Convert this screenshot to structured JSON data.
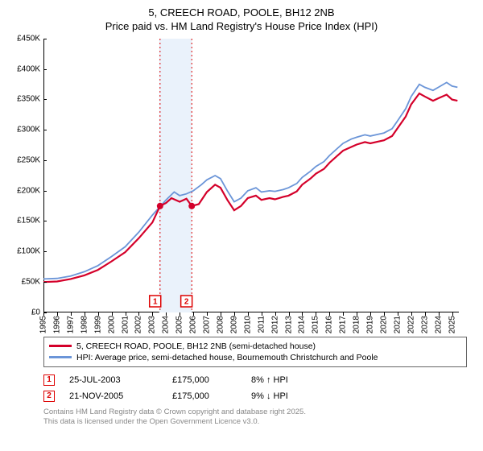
{
  "title_line1": "5, CREECH ROAD, POOLE, BH12 2NB",
  "title_line2": "Price paid vs. HM Land Registry's House Price Index (HPI)",
  "chart": {
    "type": "line",
    "background_color": "#ffffff",
    "x_year_min": 1995,
    "x_year_max": 2025.5,
    "ylim": [
      0,
      450000
    ],
    "ytick_step": 50000,
    "ytick_labels": [
      "£0",
      "£50K",
      "£100K",
      "£150K",
      "£200K",
      "£250K",
      "£300K",
      "£350K",
      "£400K",
      "£450K"
    ],
    "xtick_years": [
      1995,
      1996,
      1997,
      1998,
      1999,
      2000,
      2001,
      2002,
      2003,
      2004,
      2005,
      2006,
      2007,
      2008,
      2009,
      2010,
      2011,
      2012,
      2013,
      2014,
      2015,
      2016,
      2017,
      2018,
      2019,
      2020,
      2021,
      2022,
      2023,
      2024,
      2025
    ],
    "band": {
      "x0_year": 2003.5,
      "x1_year": 2005.9,
      "color": "#eaf2fb"
    },
    "series": {
      "hpi": {
        "label": "HPI: Average price, semi-detached house, Bournemouth Christchurch and Poole",
        "color": "#6b95d8",
        "points": [
          [
            1995.0,
            55000
          ],
          [
            1996.0,
            56000
          ],
          [
            1997.0,
            60000
          ],
          [
            1998.0,
            67000
          ],
          [
            1999.0,
            77000
          ],
          [
            2000.0,
            92000
          ],
          [
            2001.0,
            108000
          ],
          [
            2002.0,
            132000
          ],
          [
            2003.0,
            160000
          ],
          [
            2004.0,
            185000
          ],
          [
            2004.6,
            198000
          ],
          [
            2005.0,
            192000
          ],
          [
            2005.5,
            195000
          ],
          [
            2006.0,
            200000
          ],
          [
            2006.6,
            210000
          ],
          [
            2007.0,
            218000
          ],
          [
            2007.6,
            225000
          ],
          [
            2008.0,
            220000
          ],
          [
            2008.5,
            200000
          ],
          [
            2009.0,
            182000
          ],
          [
            2009.5,
            188000
          ],
          [
            2010.0,
            200000
          ],
          [
            2010.6,
            205000
          ],
          [
            2011.0,
            198000
          ],
          [
            2011.6,
            200000
          ],
          [
            2012.0,
            199000
          ],
          [
            2012.6,
            202000
          ],
          [
            2013.0,
            205000
          ],
          [
            2013.6,
            212000
          ],
          [
            2014.0,
            222000
          ],
          [
            2014.6,
            232000
          ],
          [
            2015.0,
            240000
          ],
          [
            2015.6,
            248000
          ],
          [
            2016.0,
            258000
          ],
          [
            2016.6,
            270000
          ],
          [
            2017.0,
            278000
          ],
          [
            2017.6,
            285000
          ],
          [
            2018.0,
            288000
          ],
          [
            2018.6,
            292000
          ],
          [
            2019.0,
            290000
          ],
          [
            2019.6,
            293000
          ],
          [
            2020.0,
            295000
          ],
          [
            2020.6,
            302000
          ],
          [
            2021.0,
            315000
          ],
          [
            2021.6,
            335000
          ],
          [
            2022.0,
            355000
          ],
          [
            2022.6,
            375000
          ],
          [
            2023.0,
            370000
          ],
          [
            2023.6,
            365000
          ],
          [
            2024.0,
            370000
          ],
          [
            2024.6,
            378000
          ],
          [
            2025.0,
            372000
          ],
          [
            2025.4,
            370000
          ]
        ]
      },
      "price": {
        "label": "5, CREECH ROAD, POOLE, BH12 2NB (semi-detached house)",
        "color": "#d4002a",
        "points": [
          [
            1995.0,
            50000
          ],
          [
            1996.0,
            51000
          ],
          [
            1997.0,
            55000
          ],
          [
            1998.0,
            61000
          ],
          [
            1999.0,
            70000
          ],
          [
            2000.0,
            84000
          ],
          [
            2001.0,
            99000
          ],
          [
            2002.0,
            122000
          ],
          [
            2003.0,
            148000
          ],
          [
            2003.56,
            175000
          ],
          [
            2004.0,
            180000
          ],
          [
            2004.4,
            188000
          ],
          [
            2005.0,
            182000
          ],
          [
            2005.5,
            187000
          ],
          [
            2005.89,
            175000
          ],
          [
            2006.4,
            178000
          ],
          [
            2007.0,
            198000
          ],
          [
            2007.6,
            210000
          ],
          [
            2008.0,
            205000
          ],
          [
            2008.5,
            185000
          ],
          [
            2009.0,
            168000
          ],
          [
            2009.5,
            175000
          ],
          [
            2010.0,
            188000
          ],
          [
            2010.6,
            192000
          ],
          [
            2011.0,
            185000
          ],
          [
            2011.6,
            188000
          ],
          [
            2012.0,
            186000
          ],
          [
            2012.6,
            190000
          ],
          [
            2013.0,
            192000
          ],
          [
            2013.6,
            199000
          ],
          [
            2014.0,
            210000
          ],
          [
            2014.6,
            220000
          ],
          [
            2015.0,
            228000
          ],
          [
            2015.6,
            236000
          ],
          [
            2016.0,
            246000
          ],
          [
            2016.6,
            258000
          ],
          [
            2017.0,
            266000
          ],
          [
            2017.6,
            272000
          ],
          [
            2018.0,
            276000
          ],
          [
            2018.6,
            280000
          ],
          [
            2019.0,
            278000
          ],
          [
            2019.6,
            281000
          ],
          [
            2020.0,
            283000
          ],
          [
            2020.6,
            290000
          ],
          [
            2021.0,
            303000
          ],
          [
            2021.6,
            322000
          ],
          [
            2022.0,
            342000
          ],
          [
            2022.6,
            360000
          ],
          [
            2023.0,
            355000
          ],
          [
            2023.6,
            348000
          ],
          [
            2024.0,
            352000
          ],
          [
            2024.6,
            358000
          ],
          [
            2025.0,
            350000
          ],
          [
            2025.4,
            348000
          ]
        ]
      }
    },
    "sale_markers": [
      {
        "n": "1",
        "label_year": 2003.2,
        "line_year": 2003.56,
        "price_y": 175000
      },
      {
        "n": "2",
        "label_year": 2005.5,
        "line_year": 2005.89,
        "price_y": 175000
      }
    ]
  },
  "transactions": [
    {
      "n": "1",
      "date": "25-JUL-2003",
      "price": "£175,000",
      "diff": "8% ↑ HPI"
    },
    {
      "n": "2",
      "date": "21-NOV-2005",
      "price": "£175,000",
      "diff": "9% ↓ HPI"
    }
  ],
  "footer_line1": "Contains HM Land Registry data © Crown copyright and database right 2025.",
  "footer_line2": "This data is licensed under the Open Government Licence v3.0."
}
